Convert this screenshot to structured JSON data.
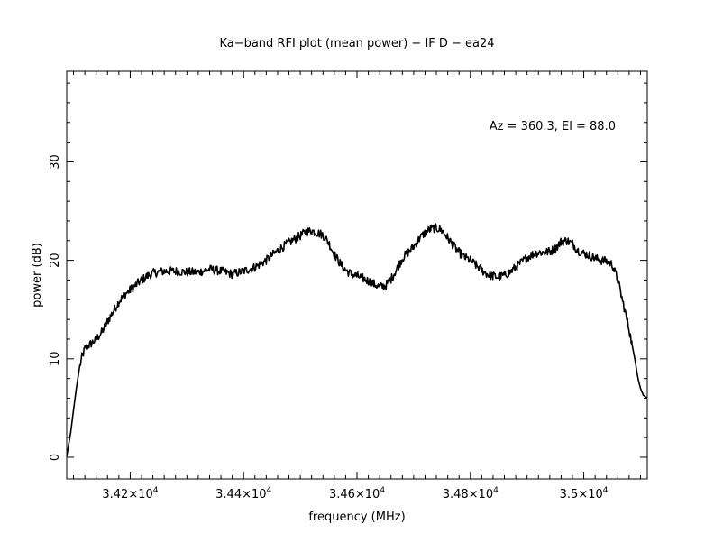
{
  "chart_data": {
    "type": "line",
    "title": "Ka−band RFI plot (mean power) − IF D − ea24",
    "xlabel": "frequency (MHz)",
    "ylabel": "power (dB)",
    "annotation": "Az = 360.3, El = 88.0",
    "xlim": [
      34088,
      35112
    ],
    "ylim": [
      -2.2,
      39.2
    ],
    "x_ticks": [
      {
        "value": 34200,
        "mantissa": "3.42",
        "base": "×10",
        "exp": "4"
      },
      {
        "value": 34400,
        "mantissa": "3.44",
        "base": "×10",
        "exp": "4"
      },
      {
        "value": 34600,
        "mantissa": "3.46",
        "base": "×10",
        "exp": "4"
      },
      {
        "value": 34800,
        "mantissa": "3.48",
        "base": "×10",
        "exp": "4"
      },
      {
        "value": 35000,
        "mantissa": "3.5",
        "base": "×10",
        "exp": "4"
      }
    ],
    "y_ticks": [
      {
        "value": 0,
        "label": "0"
      },
      {
        "value": 10,
        "label": "10"
      },
      {
        "value": 20,
        "label": "20"
      },
      {
        "value": 30,
        "label": "30"
      }
    ],
    "line_color": "#000000",
    "series": [
      {
        "x": [
          34088,
          34095,
          34100,
          34105,
          34110,
          34115,
          34120,
          34125,
          34130,
          34140,
          34150,
          34160,
          34170,
          34180,
          34190,
          34200,
          34210,
          34220,
          34230,
          34240,
          34250,
          34260,
          34270,
          34280,
          34300,
          34320,
          34340,
          34360,
          34380,
          34400,
          34420,
          34440,
          34460,
          34480,
          34500,
          34510,
          34520,
          34530,
          34540,
          34550,
          34560,
          34570,
          34580,
          34590,
          34600,
          34610,
          34620,
          34630,
          34640,
          34650,
          34660,
          34670,
          34680,
          34690,
          34700,
          34710,
          34720,
          34730,
          34740,
          34750,
          34760,
          34770,
          34780,
          34790,
          34800,
          34810,
          34820,
          34830,
          34840,
          34850,
          34860,
          34870,
          34880,
          34890,
          34900,
          34910,
          34920,
          34930,
          34940,
          34950,
          34960,
          34970,
          34980,
          34990,
          35000,
          35010,
          35020,
          35030,
          35040,
          35050,
          35060,
          35070,
          35080,
          35085,
          35090,
          35093,
          35096,
          35100,
          35105,
          35112
        ],
        "y": [
          0.1,
          2.5,
          4.8,
          7.0,
          8.9,
          10.2,
          11.0,
          11.3,
          11.5,
          12.0,
          12.7,
          13.8,
          14.8,
          15.8,
          16.5,
          17.0,
          17.5,
          18.0,
          18.4,
          18.7,
          18.8,
          18.9,
          18.9,
          18.9,
          18.8,
          18.8,
          19.1,
          18.9,
          18.6,
          18.9,
          19.3,
          20.0,
          21.0,
          21.8,
          22.5,
          22.9,
          23.0,
          22.8,
          22.6,
          21.8,
          20.6,
          19.7,
          19.0,
          18.6,
          18.4,
          18.2,
          17.9,
          17.6,
          17.3,
          17.4,
          18.1,
          19.1,
          20.2,
          20.8,
          21.4,
          22.2,
          22.8,
          23.2,
          23.3,
          23.0,
          22.3,
          21.5,
          20.8,
          20.3,
          20.0,
          19.5,
          19.0,
          18.6,
          18.4,
          18.3,
          18.5,
          18.8,
          19.3,
          19.8,
          20.3,
          20.6,
          20.8,
          20.8,
          20.9,
          21.2,
          21.9,
          22.0,
          21.7,
          21.0,
          20.7,
          20.5,
          20.2,
          20.0,
          19.9,
          19.6,
          18.0,
          15.5,
          13.0,
          11.5,
          10.0,
          8.9,
          7.9,
          7.0,
          6.3,
          6.0
        ]
      }
    ]
  }
}
